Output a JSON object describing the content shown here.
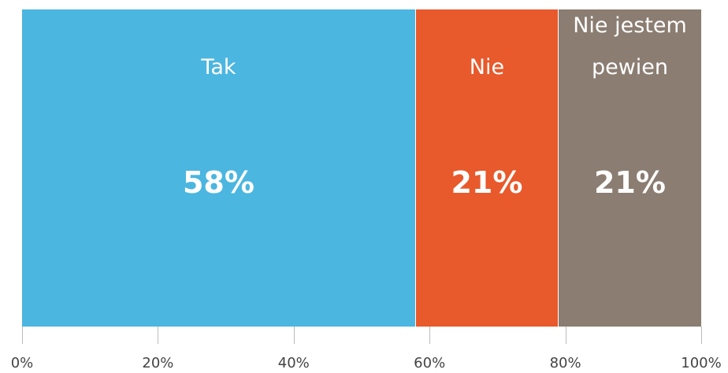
{
  "chart_data": {
    "type": "bar",
    "orientation": "horizontal",
    "stacked": true,
    "series": [
      {
        "name": "Tak",
        "color": "#4bb6e0",
        "values": [
          58
        ],
        "value_labels": [
          "58%"
        ]
      },
      {
        "name": "Nie",
        "color": "#e8592b",
        "values": [
          21
        ],
        "value_labels": [
          "21%"
        ]
      },
      {
        "name": "Nie jestem pewien",
        "color": "#8b7d72",
        "values": [
          21
        ],
        "value_labels": [
          "21%"
        ]
      }
    ],
    "xlim": [
      0,
      100
    ],
    "xticks": [
      {
        "value": 0,
        "label": "0%"
      },
      {
        "value": 20,
        "label": "20%"
      },
      {
        "value": 40,
        "label": "40%"
      },
      {
        "value": 60,
        "label": "60%"
      },
      {
        "value": 80,
        "label": "80%"
      },
      {
        "value": 100,
        "label": "100%"
      }
    ]
  }
}
